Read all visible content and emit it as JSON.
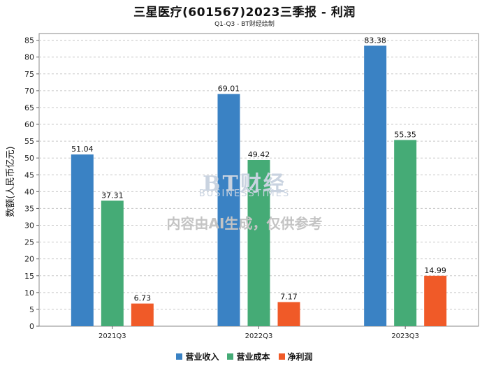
{
  "chart_data": {
    "type": "bar",
    "title": "三星医疗(601567)2023三季报 - 利润",
    "subtitle": "Q1-Q3 - BT财经绘制",
    "ylabel": "数额(人民币亿元)",
    "xlabel": "",
    "categories": [
      "2021Q3",
      "2022Q3",
      "2023Q3"
    ],
    "series": [
      {
        "name": "营业收入",
        "color": "#3a82c4",
        "values": [
          51.04,
          69.01,
          83.38
        ]
      },
      {
        "name": "营业成本",
        "color": "#45ab76",
        "values": [
          37.31,
          49.42,
          55.35
        ]
      },
      {
        "name": "净利润",
        "color": "#f05a28",
        "values": [
          6.73,
          7.17,
          14.99
        ]
      }
    ],
    "ylim": [
      0,
      87
    ],
    "yticks": [
      0,
      5,
      10,
      15,
      20,
      25,
      30,
      35,
      40,
      45,
      50,
      55,
      60,
      65,
      70,
      75,
      80,
      85
    ],
    "grid": true,
    "legend_position": "bottom"
  },
  "watermark": {
    "logo": "BT财经",
    "logo_sub": "BUSINESSTIMES",
    "notice": "内容由AI生成，仅供参考"
  }
}
